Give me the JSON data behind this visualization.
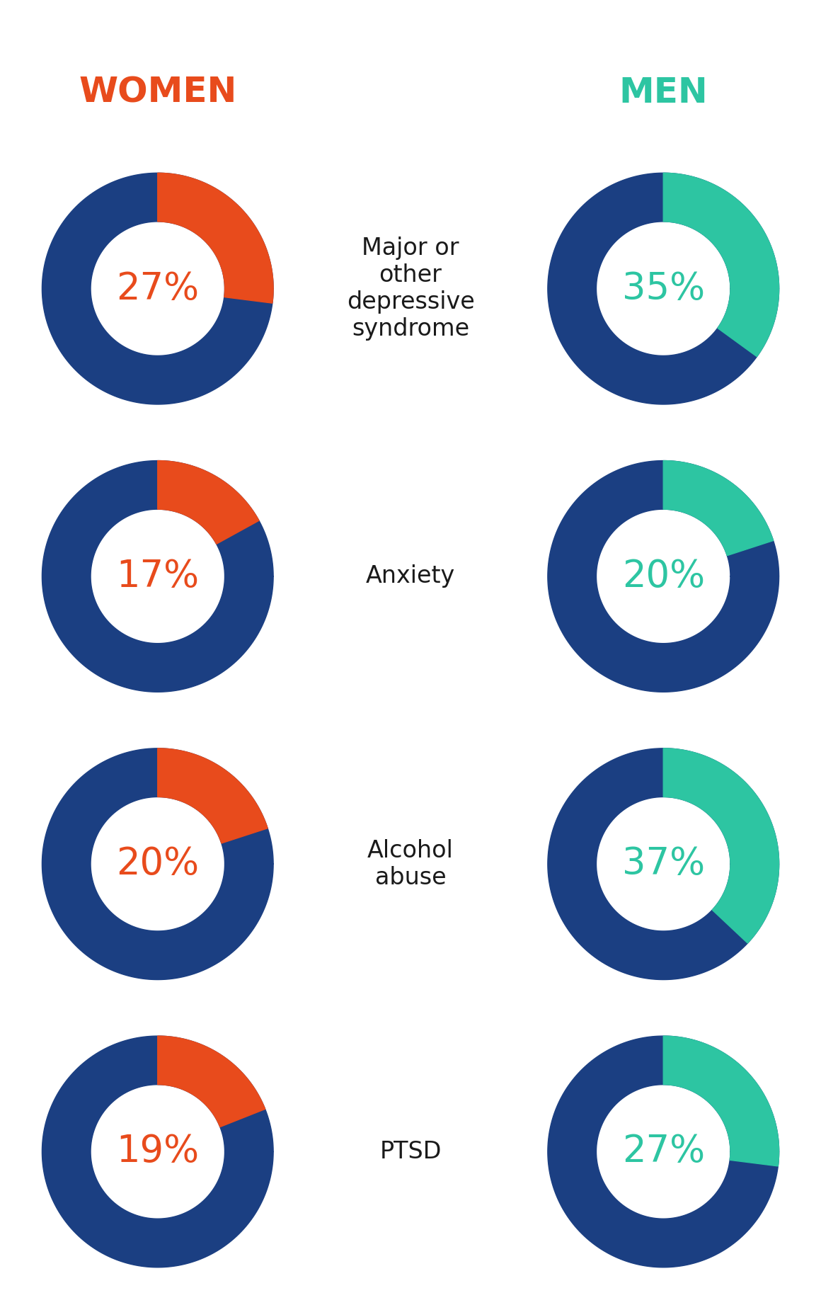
{
  "categories": [
    "Major or\nother\ndepressive\nsyndrome",
    "Anxiety",
    "Alcohol\nabuse",
    "PTSD"
  ],
  "women_pct": [
    27,
    17,
    20,
    19
  ],
  "men_pct": [
    35,
    20,
    37,
    27
  ],
  "women_color": "#E84B1C",
  "men_color": "#2DC5A2",
  "ring_bg_color": "#1B3F82",
  "women_label": "WOMEN",
  "men_label": "MEN",
  "women_label_color": "#E84B1C",
  "men_label_color": "#2DC5A2",
  "label_color": "#1A1A1A",
  "bg_color": "#FFFFFF",
  "fig_width": 11.6,
  "fig_height": 18.43,
  "header_fontsize": 36,
  "pct_fontsize": 38,
  "category_fontsize": 24
}
